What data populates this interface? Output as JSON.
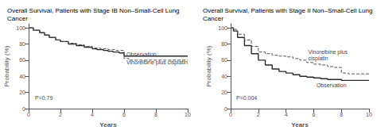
{
  "chart_data": [
    {
      "type": "step",
      "title": "Overall Survival, Patients with Stage IB Non–Small-Cell Lung Cancer",
      "xlabel": "Years",
      "ylabel": "Probability (%)",
      "xlim": [
        0,
        10
      ],
      "ylim": [
        0,
        105
      ],
      "xticks": [
        0,
        2,
        4,
        6,
        8,
        10
      ],
      "yticks": [
        0,
        20,
        40,
        60,
        80,
        100
      ],
      "grid": false,
      "series": [
        {
          "color": "#2a2a2a",
          "line_style": "solid",
          "x": [
            0,
            0.3,
            0.7,
            1.0,
            1.3,
            1.7,
            2.0,
            2.5,
            3.0,
            3.5,
            4.0,
            4.3,
            4.7,
            5.0,
            5.3,
            5.7,
            6.0,
            6.5,
            7.0,
            8.0,
            10.0
          ],
          "values": [
            100,
            97,
            94,
            91,
            88,
            85,
            83,
            80,
            78,
            76,
            74,
            73,
            72,
            71,
            70,
            69,
            65,
            65,
            65,
            65,
            65
          ]
        },
        {
          "color": "#555555",
          "line_style": "dashed",
          "x": [
            0,
            0.3,
            0.7,
            1.0,
            1.3,
            1.7,
            2.0,
            2.5,
            3.0,
            3.5,
            4.0,
            4.5,
            5.0,
            5.5,
            6.0,
            6.3,
            6.7,
            7.0,
            8.0,
            10.0
          ],
          "values": [
            100,
            97,
            94,
            91,
            88,
            85,
            83,
            81,
            79,
            77,
            75,
            74,
            73,
            72,
            62,
            60,
            60,
            60,
            60,
            60
          ]
        }
      ],
      "annotations": [
        {
          "text": "P=0.79",
          "x": 0.4,
          "y": 13
        },
        {
          "text": "Observation",
          "x": 6.15,
          "y": 67.5
        },
        {
          "text": "Vinorelbine plus cisplatin",
          "x": 6.15,
          "y": 57.5
        }
      ]
    },
    {
      "type": "step",
      "title": "Overall Survival, Patients with Stage II Non–Small-Cell Lung Cancer",
      "xlabel": "Years",
      "ylabel": "Probability (%)",
      "xlim": [
        0,
        10
      ],
      "ylim": [
        0,
        105
      ],
      "xticks": [
        0,
        2,
        4,
        6,
        8,
        10
      ],
      "yticks": [
        0,
        20,
        40,
        60,
        80,
        100
      ],
      "grid": false,
      "series": [
        {
          "color": "#2a2a2a",
          "line_style": "solid",
          "x": [
            0,
            0.2,
            0.5,
            1.0,
            1.5,
            2.0,
            2.5,
            3.0,
            3.5,
            4.0,
            4.5,
            5.0,
            5.5,
            6.0,
            6.5,
            7.0,
            7.5,
            8.0,
            8.5,
            9.0,
            10.0
          ],
          "values": [
            100,
            96,
            88,
            78,
            68,
            60,
            54,
            49,
            46,
            44,
            42,
            40,
            39,
            38,
            37,
            36,
            36,
            35,
            35,
            35,
            35
          ]
        },
        {
          "color": "#555555",
          "line_style": "dashed",
          "x": [
            0,
            0.2,
            0.5,
            1.0,
            1.5,
            2.0,
            2.5,
            3.0,
            3.5,
            4.0,
            4.5,
            5.0,
            5.5,
            6.0,
            6.5,
            7.0,
            7.5,
            8.0,
            8.5,
            9.0,
            10.0
          ],
          "values": [
            100,
            98,
            92,
            85,
            77,
            70,
            68,
            66,
            65,
            64,
            62,
            60,
            57,
            55,
            54,
            52,
            51,
            44,
            43,
            43,
            43
          ]
        }
      ],
      "annotations": [
        {
          "text": "P=0.004",
          "x": 0.4,
          "y": 13
        },
        {
          "text": "Observation",
          "x": 6.2,
          "y": 29
        },
        {
          "text": "Vinorelbine plus\ncisplatin",
          "x": 5.6,
          "y": 66
        }
      ]
    }
  ]
}
